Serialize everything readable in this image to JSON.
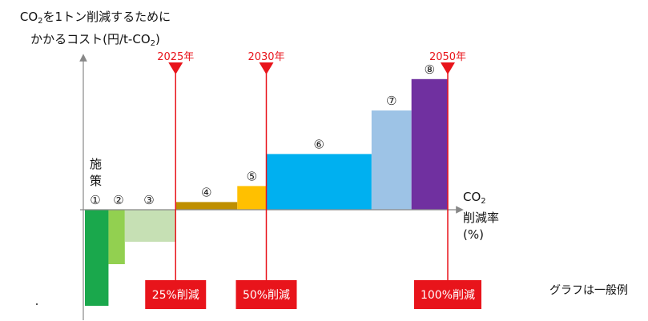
{
  "y_axis_label": {
    "line1_prefix": "CO",
    "line1_sub": "2",
    "line1_suffix": "を1トン削減するために",
    "line2_prefix": "かかるコスト(円/t-CO",
    "line2_sub": "2",
    "line2_suffix": ")"
  },
  "measures_label": {
    "char1": "施",
    "char2": "策"
  },
  "x_axis_label": {
    "line1_prefix": "CO",
    "line1_sub": "2",
    "line2": "削減率",
    "line3": "(%)"
  },
  "note": "グラフは一般例",
  "colors": {
    "marker": "#e8141b",
    "axis": "#888888"
  },
  "chart_data": {
    "type": "bar",
    "subtype": "marginal abatement cost curve",
    "title": "",
    "xlabel": "CO2削減率(%)",
    "ylabel": "CO2を1トン削減するためにかかるコスト(円/t-CO2)",
    "y_numeric_scale_shown": false,
    "bars": [
      {
        "label": "①",
        "color": "#1aa84c",
        "x_start": 0,
        "x_end": 6.5,
        "value": -1.5
      },
      {
        "label": "②",
        "color": "#92d050",
        "x_start": 6.5,
        "x_end": 11,
        "value": -0.85
      },
      {
        "label": "③",
        "color": "#c6e0b4",
        "x_start": 11,
        "x_end": 25,
        "value": -0.5
      },
      {
        "label": "④",
        "color": "#bf8f00",
        "x_start": 25,
        "x_end": 42,
        "value": 0.12
      },
      {
        "label": "⑤",
        "color": "#ffc000",
        "x_start": 42,
        "x_end": 50,
        "value": 0.37
      },
      {
        "label": "⑥",
        "color": "#00b0f0",
        "x_start": 50,
        "x_end": 79,
        "value": 0.87
      },
      {
        "label": "⑦",
        "color": "#9dc3e6",
        "x_start": 79,
        "x_end": 90,
        "value": 1.55
      },
      {
        "label": "⑧",
        "color": "#7030a0",
        "x_start": 90,
        "x_end": 100,
        "value": 2.04
      }
    ],
    "milestones": [
      {
        "year_label": "2025年",
        "reduction_label": "25%削減",
        "x": 25
      },
      {
        "year_label": "2030年",
        "reduction_label": "50%削減",
        "x": 50
      },
      {
        "year_label": "2050年",
        "reduction_label": "100%削減",
        "x": 100
      }
    ]
  }
}
